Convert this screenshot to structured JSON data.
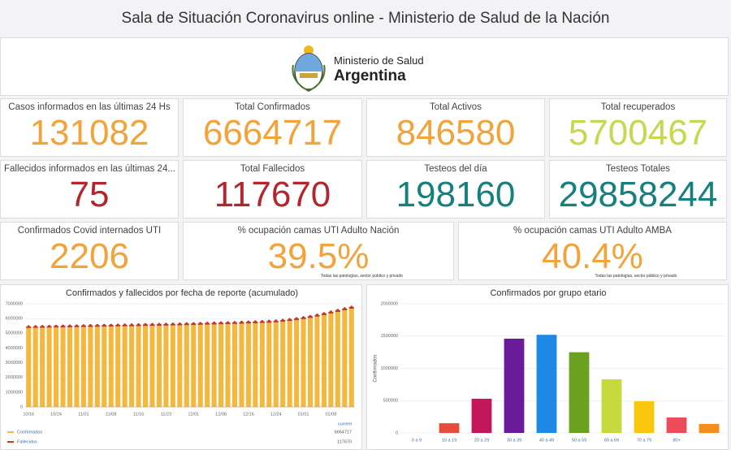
{
  "header": {
    "title": "Sala de Situación Coronavirus online - Ministerio de Salud de la Nación"
  },
  "logo": {
    "line1": "Ministerio de Salud",
    "line2": "Argentina"
  },
  "kpis": [
    {
      "label": "Casos informados en las últimas 24 Hs",
      "value": "131082",
      "color": "#f2a33a"
    },
    {
      "label": "Total Confirmados",
      "value": "6664717",
      "color": "#f2a33a"
    },
    {
      "label": "Total Activos",
      "value": "846580",
      "color": "#f2a33a"
    },
    {
      "label": "Total recuperados",
      "value": "5700467",
      "color": "#c6d94e"
    },
    {
      "label": "Fallecidos informados en las últimas 24...",
      "value": "75",
      "color": "#b3262d"
    },
    {
      "label": "Total Fallecidos",
      "value": "117670",
      "color": "#b3262d"
    },
    {
      "label": "Testeos del día",
      "value": "198160",
      "color": "#15807d"
    },
    {
      "label": "Testeos Totales",
      "value": "29858244",
      "color": "#15807d"
    },
    {
      "label": "Confirmados Covid internados UTI",
      "value": "2206",
      "color": "#f2a33a"
    },
    {
      "label": "% ocupación camas UTI Adulto Nación",
      "value": "39.5%",
      "color": "#f2a33a"
    },
    {
      "label": "% ocupación camas UTI Adulto AMBA",
      "value": "40.4%",
      "color": "#f2a33a"
    }
  ],
  "note": "Todas las patologías, sector público y privado",
  "chart_data": [
    {
      "type": "bar",
      "stacked": true,
      "title": "Confirmados y fallecidos por fecha de reporte (acumulado)",
      "categories": [
        "10/16",
        null,
        null,
        null,
        "10/24",
        null,
        null,
        null,
        "11/01",
        null,
        null,
        null,
        "11/08",
        null,
        null,
        null,
        "11/16",
        null,
        null,
        null,
        "11/23",
        null,
        null,
        null,
        "12/01",
        null,
        null,
        null,
        "12/08",
        null,
        null,
        null,
        "12/16",
        null,
        null,
        null,
        "12/24",
        null,
        null,
        null,
        "01/01",
        null,
        null,
        null,
        "01/08",
        null,
        null,
        null
      ],
      "series": [
        {
          "name": "Confirmados",
          "color": "#f5b83f",
          "values": [
            5360000,
            5368000,
            5376000,
            5384000,
            5392000,
            5400000,
            5408000,
            5416000,
            5424000,
            5432000,
            5440000,
            5448000,
            5456000,
            5464000,
            5472000,
            5480000,
            5488000,
            5496000,
            5504000,
            5512000,
            5520000,
            5530000,
            5540000,
            5550000,
            5560000,
            5572000,
            5584000,
            5596000,
            5608000,
            5620000,
            5634000,
            5648000,
            5664000,
            5680000,
            5698000,
            5716000,
            5740000,
            5780000,
            5830000,
            5890000,
            5960000,
            6040000,
            6130000,
            6230000,
            6340000,
            6450000,
            6560000,
            6664717
          ]
        },
        {
          "name": "Fallecidos",
          "color": "#c0392b",
          "values": [
            96000,
            96460,
            96920,
            97380,
            97840,
            98300,
            98760,
            99220,
            99680,
            100140,
            100600,
            101060,
            101520,
            101980,
            102440,
            102900,
            103360,
            103820,
            104280,
            104740,
            105200,
            105660,
            106120,
            106580,
            107040,
            107500,
            107960,
            108420,
            108880,
            109340,
            109800,
            110260,
            110720,
            111180,
            111640,
            112100,
            112560,
            113020,
            113480,
            113940,
            114400,
            114860,
            115320,
            115780,
            116240,
            116700,
            117160,
            117670
          ]
        }
      ],
      "ylim": [
        0,
        7000000
      ],
      "yticks": [
        0,
        1000000,
        2000000,
        3000000,
        4000000,
        5000000,
        6000000,
        7000000
      ],
      "grid": true,
      "legend_header": "current"
    },
    {
      "type": "bar",
      "title": "Confirmados por grupo etario",
      "y_label": "Confirmados",
      "categories": [
        "0 a 9",
        "10 a 19",
        "20 a 29",
        "30 a 39",
        "40 a 49",
        "50 a 59",
        "60 a 69",
        "70 a 79",
        "80+",
        null
      ],
      "values": [
        0,
        150000,
        530000,
        1460000,
        1520000,
        1250000,
        830000,
        490000,
        240000,
        140000
      ],
      "colors": [
        "#f39c12",
        "#e74c3c",
        "#c2185b",
        "#6a1b9a",
        "#1e88e5",
        "#6aa121",
        "#c6d93d",
        "#f9c80e",
        "#ec4c5a",
        "#f58d1f"
      ],
      "ylim": [
        0,
        2000000
      ],
      "yticks": [
        0,
        500000,
        1000000,
        1500000,
        2000000
      ],
      "grid": true
    }
  ]
}
